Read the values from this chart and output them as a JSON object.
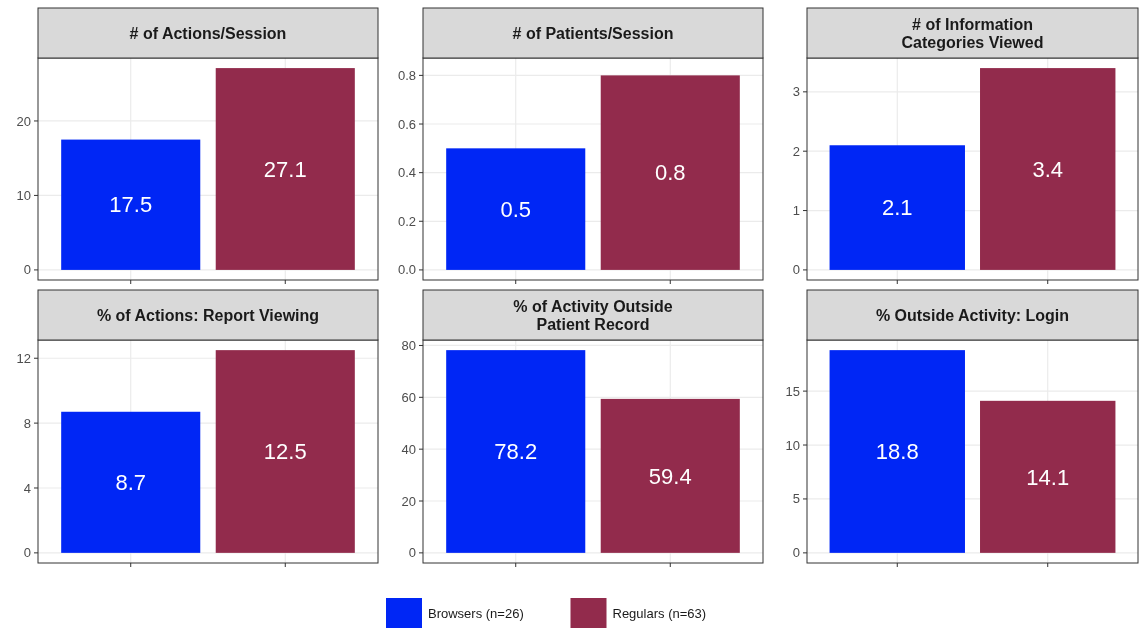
{
  "chart_data": [
    {
      "type": "bar",
      "title": "# of Actions/Session",
      "categories": [
        null,
        null
      ],
      "stacked": true,
      "grid": true,
      "legend": "bottom",
      "data_labels": true,
      "ylim": [
        -1.355,
        28.455
      ],
      "yticks": [
        0,
        10,
        20
      ],
      "series": [
        {
          "name": "Browsers (n=26)",
          "color": "#0026f5",
          "values": [
            17.5,
            null
          ]
        },
        {
          "name": "Regulars (n=63)",
          "color": "#922b4c",
          "values": [
            null,
            27.1
          ]
        }
      ]
    },
    {
      "type": "bar",
      "title": "# of Patients/Session",
      "categories": [
        null,
        null
      ],
      "stacked": true,
      "grid": true,
      "data_labels": true,
      "ylim": [
        -0.0415,
        0.8715
      ],
      "yticks": [
        {
          "value": 0,
          "label": "0.0"
        },
        {
          "value": 0.2,
          "label": "0.2"
        },
        {
          "value": 0.4,
          "label": "0.4"
        },
        {
          "value": 0.6,
          "label": "0.6"
        },
        {
          "value": 0.8,
          "label": "0.8"
        }
      ],
      "series": [
        {
          "color": "#0026f5",
          "values": [
            0.5,
            null
          ]
        },
        {
          "color": "#922b4c",
          "values": [
            null,
            0.8
          ]
        }
      ]
    },
    {
      "type": "bar",
      "title": "# of Information\nCategories Viewed",
      "categories": [
        null,
        null
      ],
      "stacked": true,
      "grid": true,
      "data_labels": true,
      "ylim": [
        -0.17,
        3.57
      ],
      "yticks": [
        0,
        1,
        2,
        3
      ],
      "series": [
        {
          "color": "#0026f5",
          "values": [
            2.1,
            null
          ]
        },
        {
          "color": "#922b4c",
          "values": [
            null,
            3.4
          ]
        }
      ]
    },
    {
      "type": "bar",
      "title": "% of Actions: Report Viewing",
      "categories": [
        null,
        null
      ],
      "stacked": true,
      "grid": true,
      "data_labels": true,
      "ylim": [
        -0.625,
        13.125
      ],
      "yticks": [
        0,
        4,
        8,
        12
      ],
      "series": [
        {
          "color": "#0026f5",
          "values": [
            8.7,
            null
          ]
        },
        {
          "color": "#922b4c",
          "values": [
            null,
            12.5
          ]
        }
      ]
    },
    {
      "type": "bar",
      "title": "% of Activity Outside\nPatient Record",
      "categories": [
        null,
        null
      ],
      "stacked": true,
      "grid": true,
      "data_labels": true,
      "ylim": [
        -3.91,
        82.11
      ],
      "yticks": [
        0,
        20,
        40,
        60,
        80
      ],
      "series": [
        {
          "color": "#0026f5",
          "values": [
            78.2,
            null
          ]
        },
        {
          "color": "#922b4c",
          "values": [
            null,
            59.4
          ]
        }
      ]
    },
    {
      "type": "bar",
      "title": "% Outside Activity: Login",
      "categories": [
        null,
        null
      ],
      "stacked": true,
      "grid": true,
      "data_labels": true,
      "ylim": [
        -0.94,
        19.74
      ],
      "yticks": [
        0,
        5,
        10,
        15
      ],
      "series": [
        {
          "color": "#0026f5",
          "values": [
            18.8,
            null
          ]
        },
        {
          "color": "#922b4c",
          "values": [
            null,
            14.1
          ]
        }
      ]
    }
  ]
}
